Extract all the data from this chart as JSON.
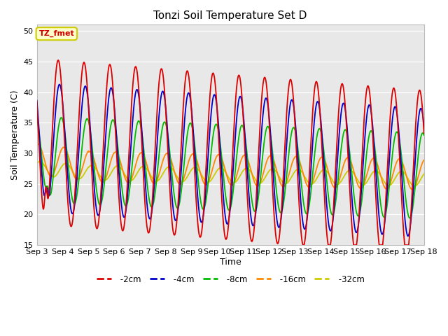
{
  "title": "Tonzi Soil Temperature Set D",
  "xlabel": "Time",
  "ylabel": "Soil Temperature (C)",
  "ylim": [
    15,
    51
  ],
  "yticks": [
    15,
    20,
    25,
    30,
    35,
    40,
    45,
    50
  ],
  "xlim_days": [
    3,
    18
  ],
  "xtick_days": [
    3,
    4,
    5,
    6,
    7,
    8,
    9,
    10,
    11,
    12,
    13,
    14,
    15,
    16,
    17,
    18
  ],
  "plot_bg": "#e8e8e8",
  "fig_bg": "#ffffff",
  "annotation_text": "TZ_fmet",
  "annotation_bg": "#ffffcc",
  "annotation_border": "#cccc00",
  "colors": {
    "-2cm": "#dd0000",
    "-4cm": "#0000cc",
    "-8cm": "#00bb00",
    "-16cm": "#ff8800",
    "-32cm": "#cccc00"
  }
}
